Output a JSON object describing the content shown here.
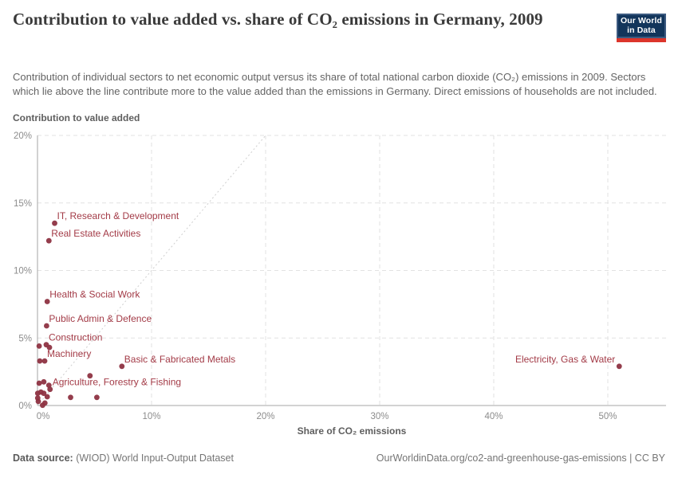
{
  "header": {
    "title": "Contribution to value added vs. share of CO₂ emissions in Germany, 2009",
    "subtitle": "Contribution of individual sectors to net economic output versus its share of total national carbon dioxide (CO₂) emissions in 2009. Sectors which lie above the line contribute more to the value added than the emissions in Germany. Direct emissions of households are not included.",
    "logo": {
      "line1": "Our World",
      "line2": "in Data"
    }
  },
  "chart_data": {
    "type": "scatter",
    "title": "Contribution to value added vs. share of CO₂ emissions in Germany, 2009",
    "xlabel": "Share of CO₂ emissions",
    "ylabel": "Contribution to value added",
    "xlim": [
      0,
      55
    ],
    "ylim": [
      0,
      20
    ],
    "x_ticks": [
      0,
      10,
      20,
      30,
      40,
      50
    ],
    "y_ticks": [
      0,
      5,
      10,
      15,
      20
    ],
    "tick_suffix": "%",
    "grid": true,
    "legend": "none",
    "reference_line": {
      "from": [
        0,
        0
      ],
      "to": [
        20,
        20
      ],
      "meaning": "y equals x parity line"
    },
    "point_color": "#8e3342",
    "label_color": "#a33b47",
    "points": [
      {
        "label": "IT, Research & Development",
        "x": 1.5,
        "y": 13.5,
        "label_side": "right"
      },
      {
        "label": "Real Estate Activities",
        "x": 1.0,
        "y": 12.2,
        "label_side": "right"
      },
      {
        "label": "Health & Social Work",
        "x": 0.85,
        "y": 7.7,
        "label_side": "right"
      },
      {
        "label": "Public Admin & Defence",
        "x": 0.8,
        "y": 5.9,
        "label_side": "right"
      },
      {
        "label": "Construction",
        "x": 0.77,
        "y": 4.5,
        "label_side": "right"
      },
      {
        "label": "Machinery",
        "x": 0.63,
        "y": 3.3,
        "label_side": "right"
      },
      {
        "label": "Basic & Fabricated Metals",
        "x": 7.4,
        "y": 2.9,
        "label_side": "right"
      },
      {
        "label": "Agriculture, Forestry & Fishing",
        "x": 1.1,
        "y": 1.2,
        "label_side": "right"
      },
      {
        "label": "Electricity, Gas & Water",
        "x": 51.0,
        "y": 2.9,
        "label_side": "left"
      },
      {
        "x": 0.15,
        "y": 4.4
      },
      {
        "x": 1.05,
        "y": 4.3
      },
      {
        "x": 0.2,
        "y": 3.3
      },
      {
        "x": 4.6,
        "y": 2.2
      },
      {
        "x": 0.15,
        "y": 1.65
      },
      {
        "x": 0.55,
        "y": 1.75
      },
      {
        "x": 1.0,
        "y": 1.5
      },
      {
        "x": 0.3,
        "y": 1.0
      },
      {
        "x": 0.02,
        "y": 0.9
      },
      {
        "x": 0.55,
        "y": 0.9
      },
      {
        "x": 0.02,
        "y": 0.55
      },
      {
        "x": 0.85,
        "y": 0.65
      },
      {
        "x": 2.9,
        "y": 0.6
      },
      {
        "x": 5.2,
        "y": 0.6
      },
      {
        "x": 0.07,
        "y": 0.3
      },
      {
        "x": 0.65,
        "y": 0.18
      },
      {
        "x": 0.45,
        "y": 0.02
      }
    ]
  },
  "footer": {
    "source_label": "Data source:",
    "source_value": " (WIOD) World Input-Output Dataset",
    "credit": "OurWorldinData.org/co2-and-greenhouse-gas-emissions | CC BY"
  }
}
